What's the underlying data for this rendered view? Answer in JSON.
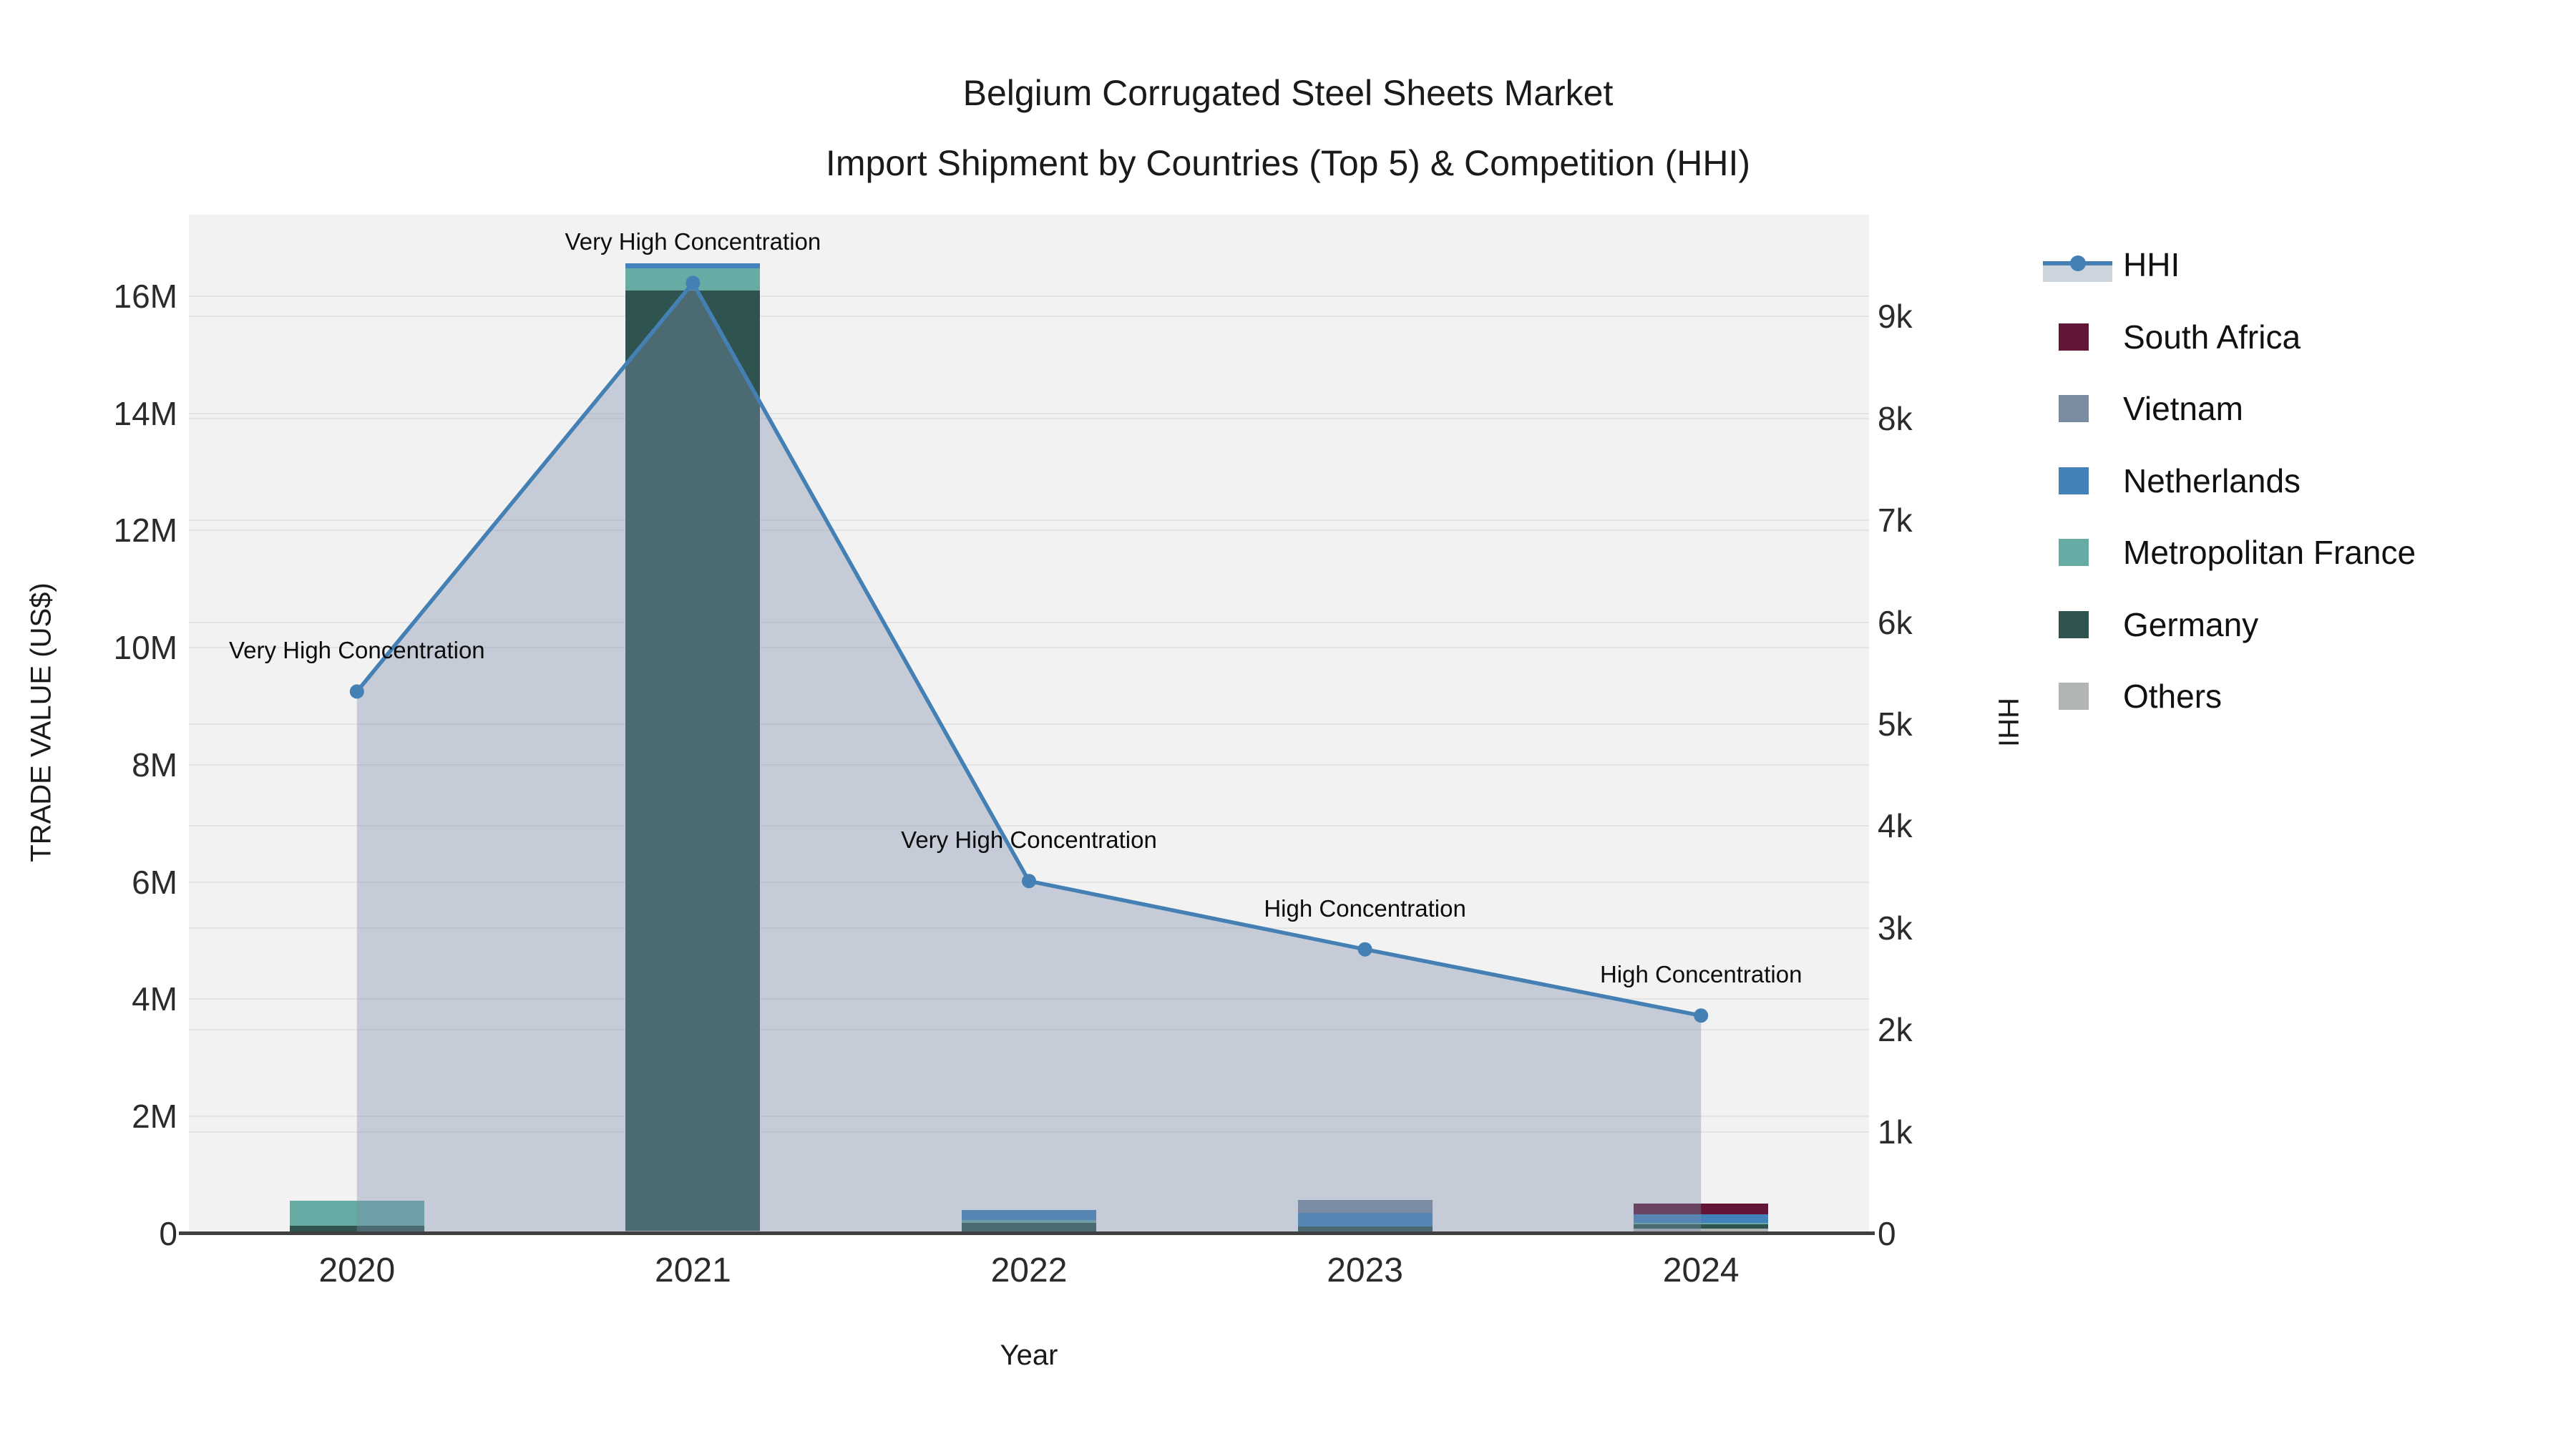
{
  "title": {
    "line1": "Belgium Corrugated Steel Sheets Market",
    "line2": "Import Shipment by Countries (Top 5) & Competition (HHI)"
  },
  "chart_data": {
    "type": "combo-stacked-bar-line",
    "categories": [
      "2020",
      "2021",
      "2022",
      "2023",
      "2024"
    ],
    "xlabel": "Year",
    "left_axis": {
      "title": "TRADE VALUE (US$)",
      "tick_labels": [
        "0",
        "2M",
        "4M",
        "6M",
        "8M",
        "10M",
        "12M",
        "14M",
        "16M"
      ],
      "tick_values_musd": [
        0,
        2,
        4,
        6,
        8,
        10,
        12,
        14,
        16
      ],
      "range_max_musd": 17.39
    },
    "right_axis": {
      "title": "HHI",
      "tick_labels": [
        "0",
        "1k",
        "2k",
        "3k",
        "4k",
        "5k",
        "6k",
        "7k",
        "8k",
        "9k"
      ],
      "tick_values": [
        0,
        1000,
        2000,
        3000,
        4000,
        5000,
        6000,
        7000,
        8000,
        9000
      ],
      "range_max": 10000
    },
    "stack_order": [
      "Others",
      "Germany",
      "Metropolitan France",
      "Netherlands",
      "Vietnam",
      "South Africa"
    ],
    "bar_values_musd": {
      "Others": [
        0.02,
        0.05,
        0.0,
        0.0,
        0.09
      ],
      "Germany": [
        0.11,
        16.05,
        0.18,
        0.12,
        0.07
      ],
      "Metropolitan France": [
        0.43,
        0.38,
        0.05,
        0.0,
        0.02
      ],
      "Netherlands": [
        0.0,
        0.08,
        0.17,
        0.23,
        0.15
      ],
      "Vietnam": [
        0.0,
        0.0,
        0.0,
        0.22,
        0.0
      ],
      "South Africa": [
        0.0,
        0.0,
        0.0,
        0.0,
        0.18
      ]
    },
    "hhi_series_name": "HHI",
    "hhi_values": [
      5320,
      9330,
      3460,
      2790,
      2140
    ],
    "annotations": [
      "Very High Concentration",
      "Very High Concentration",
      "Very High Concentration",
      "High Concentration",
      "High Concentration"
    ],
    "legend_order": [
      "HHI",
      "South Africa",
      "Vietnam",
      "Netherlands",
      "Metropolitan France",
      "Germany",
      "Others"
    ],
    "palette": {
      "HHI_line": "#4580b5",
      "HHI_fill": "rgba(124,142,170,0.38)",
      "South Africa": "#621537",
      "Vietnam": "#7b8ba0",
      "Netherlands": "#4381ba",
      "Metropolitan France": "#68aaa4",
      "Germany": "#2f5450",
      "Others": "#b1b5b6",
      "plot_background": "#f2f2f2",
      "gridline": "#e4e4e4",
      "axis_line": "#3f3f3f"
    }
  }
}
